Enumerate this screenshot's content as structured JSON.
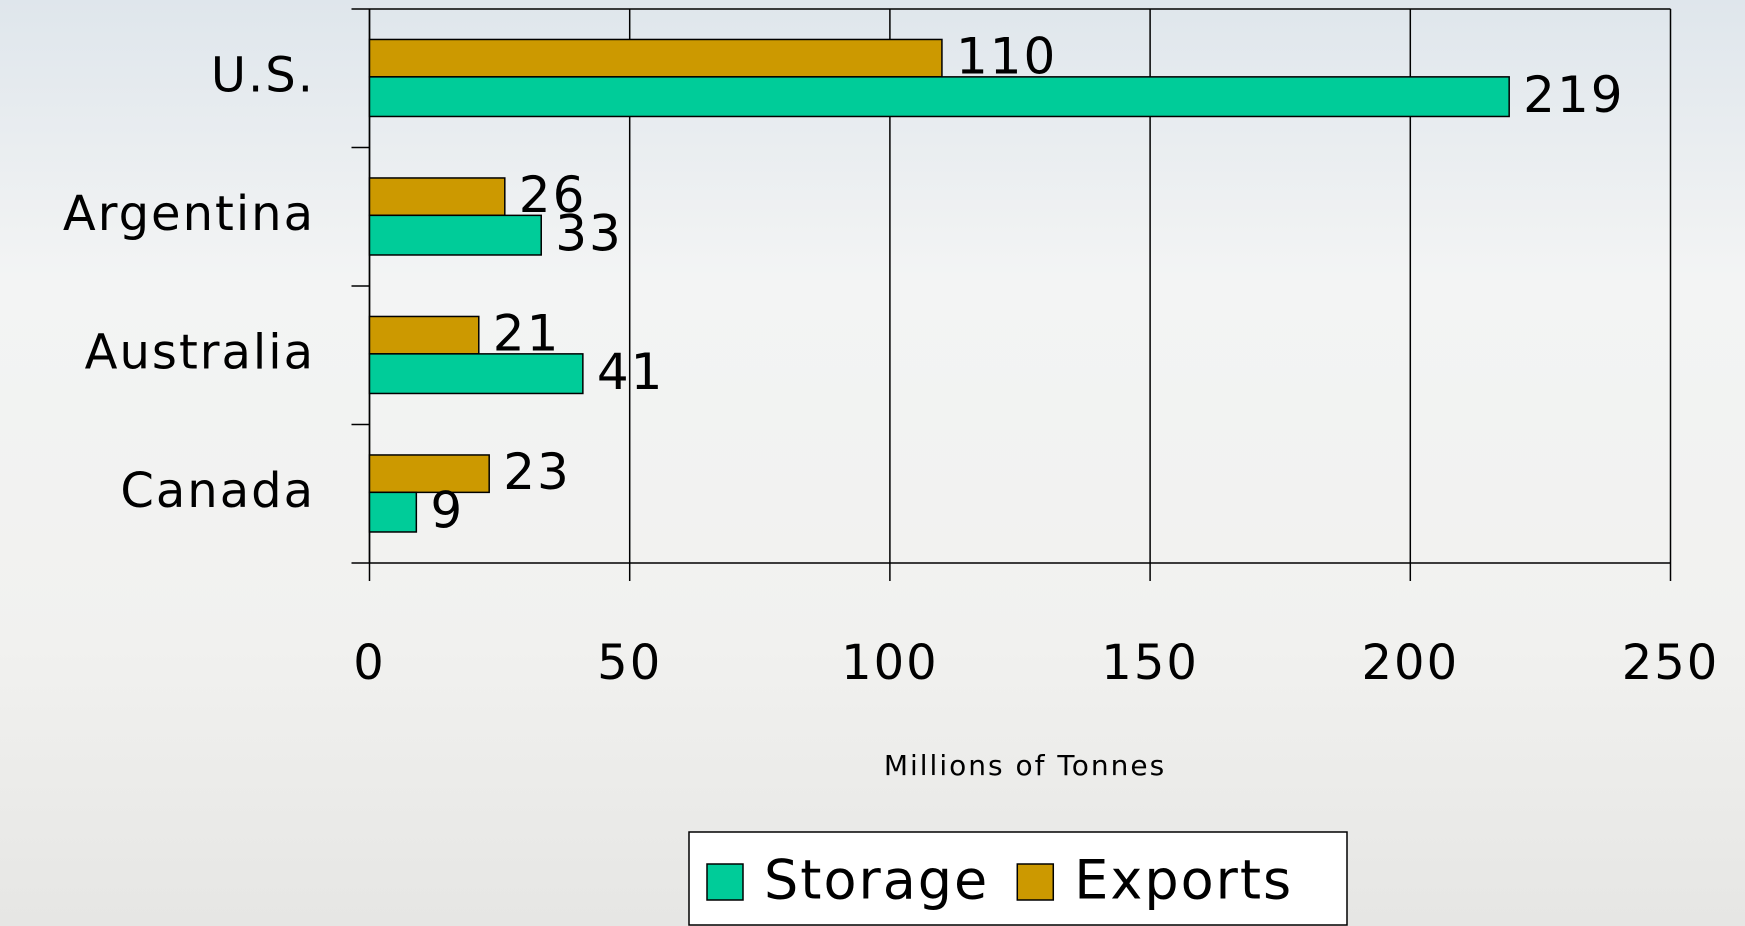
{
  "chart_data": {
    "type": "bar",
    "orientation": "horizontal",
    "categories": [
      "U.S.",
      "Argentina",
      "Australia",
      "Canada"
    ],
    "series": [
      {
        "name": "Storage",
        "color": "#00CC99",
        "values": [
          219,
          33,
          41,
          9
        ]
      },
      {
        "name": "Exports",
        "color": "#CC9900",
        "values": [
          110,
          26,
          21,
          23
        ]
      }
    ],
    "x_label": "Millions of Tonnes",
    "xlim": [
      0,
      250
    ],
    "xticks": [
      0,
      50,
      100,
      150,
      200,
      250
    ],
    "grid": true,
    "legend": "bottom"
  }
}
